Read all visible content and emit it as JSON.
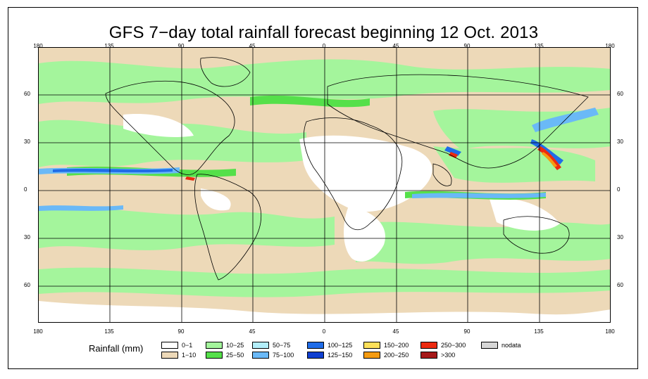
{
  "title": "GFS 7−day total rainfall forecast beginning 12 Oct. 2013",
  "map": {
    "type": "global rainfall forecast map",
    "longitude_ticks": [
      "180",
      "135",
      "90",
      "45",
      "0",
      "45",
      "90",
      "135",
      "180"
    ],
    "latitude_ticks": [
      "60",
      "30",
      "0",
      "30",
      "60"
    ],
    "grid": "on"
  },
  "legend": {
    "title": "Rainfall (mm)",
    "items": [
      {
        "label": "0−1",
        "color": "#ffffff"
      },
      {
        "label": "1−10",
        "color": "#edd9b8"
      },
      {
        "label": "10−25",
        "color": "#a4f59c"
      },
      {
        "label": "25−50",
        "color": "#55e04a"
      },
      {
        "label": "50−75",
        "color": "#b3eefa"
      },
      {
        "label": "75−100",
        "color": "#6ab9f7"
      },
      {
        "label": "100−125",
        "color": "#1f6ce8"
      },
      {
        "label": "125−150",
        "color": "#0f3fd0"
      },
      {
        "label": "150−200",
        "color": "#fde05a"
      },
      {
        "label": "200−250",
        "color": "#f59b10"
      },
      {
        "label": "250−300",
        "color": "#ec2a10"
      },
      {
        "label": ">300",
        "color": "#a51818"
      },
      {
        "label": "nodata",
        "color": "#d6d6d6"
      }
    ]
  }
}
